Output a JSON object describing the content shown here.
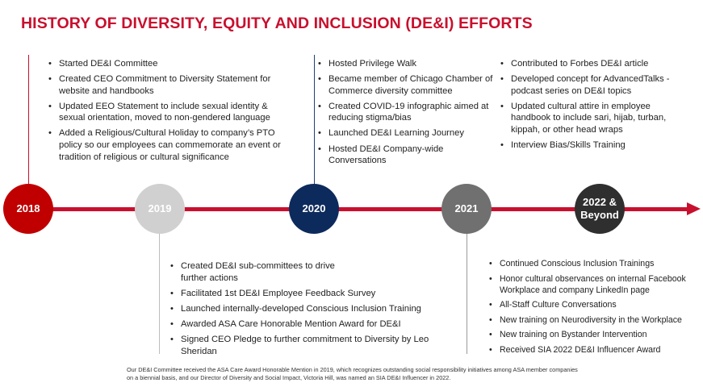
{
  "title": "HISTORY OF DIVERSITY, EQUITY AND INCLUSION (DE&I) EFFORTS",
  "colors": {
    "accent": "#c8102e",
    "year_2018": "#c00000",
    "year_2019": "#d0d0d0",
    "year_2020": "#0d2a5c",
    "year_2021": "#707070",
    "year_2022": "#2f2f2f"
  },
  "years": [
    {
      "label": "2018"
    },
    {
      "label": "2019"
    },
    {
      "label": "2020"
    },
    {
      "label": "2021"
    },
    {
      "label": "2022 & Beyond"
    }
  ],
  "items_2018": [
    "Started DE&I Committee",
    "Created CEO Commitment to Diversity Statement for website and handbooks",
    "Updated EEO Statement to include sexual identity & sexual orientation, moved to non-gendered language",
    "Added a Religious/Cultural Holiday to company’s PTO policy so our employees can commemorate an event or tradition of religious or cultural significance"
  ],
  "items_2019": [
    "Created DE&I sub-committees to drive further actions",
    "Facilitated 1st DE&I Employee Feedback Survey",
    "Launched internally-developed Conscious Inclusion Training",
    "Awarded ASA Care Honorable Mention Award for DE&I",
    "Signed CEO Pledge to further commitment to Diversity by Leo Sheridan"
  ],
  "items_2020": [
    "Hosted Privilege Walk",
    "Became member of Chicago Chamber of Commerce diversity committee",
    "Created COVID-19 infographic aimed at reducing stigma/bias",
    "Launched DE&I Learning Journey",
    "Hosted DE&I Company-wide Conversations"
  ],
  "items_2021": [
    "Continued Conscious Inclusion Trainings",
    "Honor cultural observances on internal Facebook Workplace and company LinkedIn page",
    "All-Staff Culture Conversations",
    "New training on Neurodiversity in the Workplace",
    "New training on Bystander Intervention",
    "Received SIA 2022 DE&I Influencer Award"
  ],
  "items_2022": [
    "Contributed to Forbes DE&I article",
    "Developed concept for AdvancedTalks - podcast series on DE&I topics",
    "Updated cultural attire in employee handbook to include sari, hijab, turban, kippah, or other head wraps",
    "Interview Bias/Skills Training"
  ],
  "footnote": "Our DE&I Committee received the ASA Care Award Honorable Mention in 2019, which recognizes outstanding social responsibility initiatives among ASA member companies on a biennial basis, and our Director of Diversity and Social Impact, Victoria Hill, was named an SIA DE&I Influencer in 2022."
}
